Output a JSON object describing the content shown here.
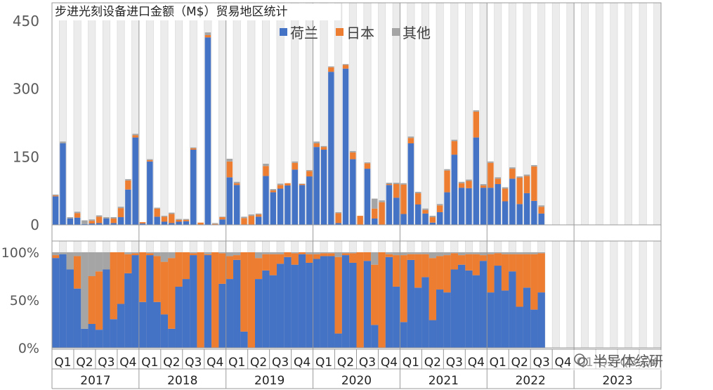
{
  "chart_data": [
    {
      "type": "bar",
      "stacked": true,
      "title": "步进光刻设备进口金额（M$）贸易地区统计",
      "ylim": [
        0,
        450
      ],
      "yticks": [
        0,
        150,
        300,
        450
      ],
      "legend": {
        "position": "top",
        "entries": [
          "荷兰",
          "日本",
          "其他"
        ]
      },
      "series": [
        {
          "name": "荷兰",
          "color": "#4472C4",
          "values": [
            63,
            180,
            14,
            16,
            2,
            3,
            4,
            14,
            4,
            17,
            78,
            193,
            3,
            140,
            18,
            7,
            4,
            7,
            8,
            166,
            0,
            414,
            0,
            12,
            105,
            88,
            0,
            0,
            18,
            108,
            72,
            80,
            87,
            122,
            88,
            107,
            172,
            166,
            338,
            4,
            345,
            145,
            0,
            124,
            14,
            0,
            88,
            60,
            24,
            180,
            45,
            25,
            5,
            28,
            72,
            155,
            82,
            81,
            193,
            82,
            82,
            90,
            52,
            102,
            46,
            70,
            53,
            25
          ]
        },
        {
          "name": "日本",
          "color": "#ED7D31",
          "values": [
            2,
            0,
            0,
            10,
            0,
            6,
            14,
            0,
            10,
            20,
            20,
            5,
            3,
            3,
            18,
            11,
            20,
            4,
            3,
            3,
            5,
            5,
            2,
            5,
            35,
            4,
            15,
            20,
            5,
            22,
            4,
            8,
            5,
            15,
            2,
            12,
            8,
            6,
            10,
            22,
            8,
            15,
            20,
            12,
            22,
            50,
            2,
            30,
            65,
            12,
            25,
            8,
            12,
            15,
            48,
            30,
            10,
            16,
            57,
            5,
            55,
            12,
            28,
            22,
            58,
            38,
            76,
            15
          ]
        },
        {
          "name": "其他",
          "color": "#A5A5A5",
          "values": [
            2,
            4,
            3,
            3,
            8,
            3,
            3,
            3,
            3,
            3,
            3,
            3,
            0,
            2,
            2,
            2,
            3,
            2,
            2,
            2,
            0,
            6,
            2,
            1,
            6,
            3,
            3,
            3,
            2,
            5,
            3,
            3,
            0,
            3,
            1,
            2,
            4,
            2,
            2,
            2,
            2,
            3,
            0,
            2,
            22,
            4,
            3,
            3,
            3,
            3,
            3,
            3,
            3,
            3,
            3,
            3,
            3,
            3,
            3,
            3,
            3,
            3,
            3,
            3,
            3,
            3,
            3,
            3
          ]
        }
      ],
      "years": [
        "2017",
        "2018",
        "2019",
        "2020",
        "2021",
        "2022",
        "2023"
      ],
      "quarters": [
        "Q1",
        "Q2",
        "Q3",
        "Q4"
      ],
      "months_per_year": 12,
      "months_with_data": 68
    },
    {
      "type": "bar",
      "stacked": true,
      "normalized": true,
      "ylim": [
        0,
        100
      ],
      "ytick_labels": [
        "0%",
        "50%",
        "100%"
      ],
      "ytick_values": [
        0,
        50,
        100
      ],
      "series": [
        {
          "name": "荷兰",
          "color": "#4472C4",
          "values": [
            94,
            98,
            82,
            62,
            20,
            25,
            19,
            82,
            30,
            46,
            78,
            97,
            48,
            97,
            48,
            35,
            20,
            64,
            72,
            97,
            0,
            97,
            0,
            67,
            72,
            92,
            17,
            0,
            72,
            81,
            76,
            88,
            95,
            87,
            98,
            89,
            93,
            96,
            96,
            15,
            97,
            89,
            0,
            91,
            24,
            0,
            95,
            64,
            27,
            92,
            63,
            74,
            29,
            61,
            58,
            82,
            87,
            81,
            76,
            91,
            58,
            86,
            60,
            80,
            43,
            63,
            40,
            58
          ]
        },
        {
          "name": "日本",
          "color": "#ED7D31",
          "values": [
            3,
            0,
            0,
            34,
            0,
            50,
            61,
            0,
            70,
            54,
            20,
            2,
            52,
            2,
            48,
            55,
            74,
            36,
            28,
            2,
            100,
            1,
            100,
            32,
            24,
            5,
            83,
            100,
            22,
            17,
            22,
            10,
            5,
            12,
            2,
            9,
            5,
            3,
            3,
            80,
            2,
            10,
            100,
            9,
            63,
            100,
            3,
            33,
            70,
            6,
            35,
            24,
            65,
            35,
            39,
            17,
            10,
            17,
            22,
            6,
            40,
            13,
            38,
            18,
            55,
            35,
            58,
            41
          ]
        },
        {
          "name": "其他",
          "color": "#A5A5A5",
          "values": [
            3,
            2,
            18,
            4,
            80,
            25,
            20,
            18,
            0,
            0,
            2,
            1,
            0,
            1,
            4,
            10,
            6,
            0,
            0,
            1,
            0,
            2,
            0,
            1,
            4,
            3,
            0,
            0,
            6,
            2,
            2,
            2,
            0,
            1,
            0,
            2,
            2,
            1,
            1,
            5,
            1,
            1,
            0,
            0,
            13,
            0,
            2,
            3,
            3,
            2,
            2,
            2,
            6,
            4,
            3,
            1,
            3,
            2,
            2,
            3,
            2,
            1,
            2,
            2,
            2,
            2,
            2,
            1
          ]
        }
      ]
    }
  ],
  "watermark": {
    "text": "半导体综研"
  }
}
